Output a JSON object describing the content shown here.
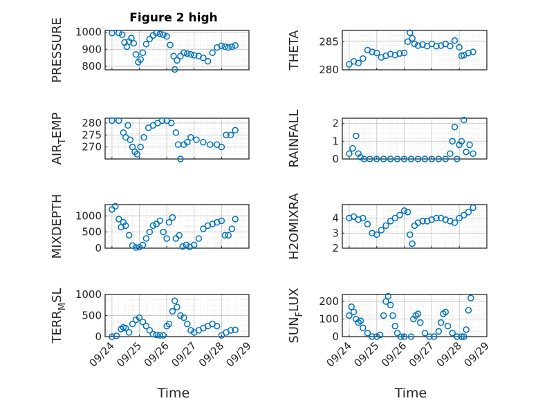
{
  "title": "Figure 2 high",
  "xlabel": "Time",
  "x_tick_labels": [
    "09/24",
    "09/25",
    "09/26",
    "09/27",
    "09/28",
    "09/29"
  ],
  "colors": {
    "marker": "#0072BD",
    "grid": "#d9d9d9",
    "axis": "#262626"
  },
  "chart_data": [
    {
      "type": "scatter",
      "ylabel": "PRESSURE",
      "yticks": [
        "800",
        "900",
        "1000"
      ],
      "ylim": [
        780,
        1010
      ],
      "x": [
        "09/24 00:00",
        "09/24 06:00",
        "09/24 09:00",
        "09/24 11:00",
        "09/24 13:00",
        "09/24 15:00",
        "09/24 17:00",
        "09/24 19:00",
        "09/24 21:00",
        "09/24 23:00",
        "09/25 01:00",
        "09/25 03:00",
        "09/25 06:00",
        "09/25 09:00",
        "09/25 12:00",
        "09/25 15:00",
        "09/25 18:00",
        "09/25 21:00",
        "09/26 00:00",
        "09/26 03:00",
        "09/26 06:00",
        "09/26 07:00",
        "09/26 09:00",
        "09/26 12:00",
        "09/26 15:00",
        "09/26 18:00",
        "09/26 21:00",
        "09/27 00:00",
        "09/27 04:00",
        "09/27 08:00",
        "09/27 12:00",
        "09/27 16:00",
        "09/27 20:00",
        "09/28 00:00",
        "09/28 03:00",
        "09/28 06:00",
        "09/28 09:00",
        "09/28 12:00"
      ],
      "y": [
        995,
        995,
        985,
        940,
        915,
        945,
        965,
        935,
        870,
        825,
        840,
        880,
        930,
        960,
        980,
        995,
        990,
        985,
        975,
        925,
        860,
        782,
        835,
        860,
        880,
        875,
        870,
        865,
        860,
        850,
        830,
        880,
        910,
        920,
        915,
        910,
        915,
        922
      ]
    },
    {
      "type": "scatter",
      "ylabel": "THETA",
      "yticks": [
        "280",
        "285"
      ],
      "ylim": [
        280,
        287
      ],
      "x": [
        "09/24 00:00",
        "09/24 04:00",
        "09/24 08:00",
        "09/24 12:00",
        "09/24 16:00",
        "09/24 20:00",
        "09/25 00:00",
        "09/25 04:00",
        "09/25 08:00",
        "09/25 12:00",
        "09/25 16:00",
        "09/25 20:00",
        "09/26 00:00",
        "09/26 03:00",
        "09/26 05:00",
        "09/26 07:00",
        "09/26 09:00",
        "09/26 12:00",
        "09/26 16:00",
        "09/26 20:00",
        "09/27 00:00",
        "09/27 04:00",
        "09/27 08:00",
        "09/27 12:00",
        "09/27 16:00",
        "09/27 20:00",
        "09/28 00:00",
        "09/28 02:00",
        "09/28 04:00",
        "09/28 08:00",
        "09/28 12:00"
      ],
      "y": [
        281.0,
        281.5,
        281.2,
        282.0,
        283.5,
        283.2,
        283.0,
        282.2,
        282.5,
        282.8,
        282.6,
        282.9,
        283.0,
        285.0,
        286.6,
        285.6,
        284.6,
        284.3,
        284.5,
        284.2,
        284.6,
        284.2,
        284.3,
        284.6,
        284.2,
        285.2,
        284.0,
        282.5,
        282.6,
        283.0,
        283.2
      ]
    },
    {
      "type": "scatter",
      "ylabel": "AIR_TEMP",
      "yticks": [
        "270",
        "275",
        "280"
      ],
      "ylim": [
        265,
        282
      ],
      "x": [
        "09/24 00:00",
        "09/24 06:00",
        "09/24 10:00",
        "09/24 12:00",
        "09/24 14:00",
        "09/24 16:00",
        "09/24 18:00",
        "09/24 20:00",
        "09/24 22:00",
        "09/25 01:00",
        "09/25 04:00",
        "09/25 08:00",
        "09/25 12:00",
        "09/25 16:00",
        "09/25 20:00",
        "09/26 00:00",
        "09/26 04:00",
        "09/26 08:00",
        "09/26 10:00",
        "09/26 12:00",
        "09/26 15:00",
        "09/26 18:00",
        "09/26 21:00",
        "09/27 02:00",
        "09/27 08:00",
        "09/27 14:00",
        "09/27 20:00",
        "09/28 00:00",
        "09/28 04:00",
        "09/28 08:00",
        "09/28 12:00"
      ],
      "y": [
        281,
        281,
        276,
        274,
        279,
        273,
        270,
        268,
        267,
        270,
        274,
        278,
        279,
        280,
        281,
        281,
        280,
        276,
        271,
        265,
        271,
        272,
        274,
        273,
        272,
        271,
        271,
        270,
        275,
        275,
        277
      ]
    },
    {
      "type": "scatter",
      "ylabel": "RAINFALL",
      "yticks": [
        "0",
        "1",
        "2"
      ],
      "ylim": [
        0,
        2.3
      ],
      "x": [
        "09/24 00:00",
        "09/24 03:00",
        "09/24 06:00",
        "09/24 08:00",
        "09/24 10:00",
        "09/24 13:00",
        "09/24 18:00",
        "09/25 00:00",
        "09/25 06:00",
        "09/25 12:00",
        "09/25 18:00",
        "09/26 00:00",
        "09/26 06:00",
        "09/26 12:00",
        "09/26 18:00",
        "09/27 00:00",
        "09/27 06:00",
        "09/27 12:00",
        "09/27 16:00",
        "09/27 18:00",
        "09/27 20:00",
        "09/27 22:00",
        "09/28 00:00",
        "09/28 02:00",
        "09/28 04:00",
        "09/28 06:00",
        "09/28 09:00",
        "09/28 12:00"
      ],
      "y": [
        0.3,
        0.6,
        1.3,
        0.3,
        0.1,
        0,
        0,
        0,
        0,
        0,
        0,
        0,
        0,
        0,
        0,
        0,
        0,
        0,
        0.3,
        1.0,
        1.8,
        0.0,
        0.8,
        1.0,
        2.2,
        0.4,
        0.8,
        0.3
      ]
    },
    {
      "type": "scatter",
      "ylabel": "MIXDEPTH",
      "yticks": [
        "0",
        "500",
        "1000"
      ],
      "ylim": [
        0,
        1350
      ],
      "x": [
        "09/24 00:00",
        "09/24 03:00",
        "09/24 06:00",
        "09/24 08:00",
        "09/24 10:00",
        "09/24 12:00",
        "09/24 15:00",
        "09/24 18:00",
        "09/24 21:00",
        "09/25 00:00",
        "09/25 03:00",
        "09/25 06:00",
        "09/25 09:00",
        "09/25 12:00",
        "09/25 15:00",
        "09/25 18:00",
        "09/25 21:00",
        "09/26 00:00",
        "09/26 02:00",
        "09/26 05:00",
        "09/26 08:00",
        "09/26 11:00",
        "09/26 14:00",
        "09/26 17:00",
        "09/26 20:00",
        "09/27 00:00",
        "09/27 04:00",
        "09/27 08:00",
        "09/27 12:00",
        "09/27 16:00",
        "09/27 20:00",
        "09/28 00:00",
        "09/28 03:00",
        "09/28 06:00",
        "09/28 09:00",
        "09/28 12:00"
      ],
      "y": [
        1200,
        1300,
        900,
        650,
        800,
        700,
        400,
        80,
        20,
        30,
        100,
        300,
        500,
        700,
        750,
        850,
        500,
        300,
        800,
        950,
        300,
        400,
        50,
        100,
        40,
        100,
        300,
        600,
        700,
        750,
        800,
        850,
        400,
        400,
        600,
        900
      ]
    },
    {
      "type": "scatter",
      "ylabel": "H2OMIXRA",
      "yticks": [
        "2",
        "3",
        "4"
      ],
      "ylim": [
        2,
        4.9
      ],
      "x": [
        "09/24 00:00",
        "09/24 04:00",
        "09/24 08:00",
        "09/24 12:00",
        "09/24 16:00",
        "09/24 20:00",
        "09/25 00:00",
        "09/25 04:00",
        "09/25 08:00",
        "09/25 12:00",
        "09/25 16:00",
        "09/25 20:00",
        "09/26 00:00",
        "09/26 03:00",
        "09/26 05:00",
        "09/26 07:00",
        "09/26 09:00",
        "09/26 12:00",
        "09/26 16:00",
        "09/26 20:00",
        "09/27 00:00",
        "09/27 04:00",
        "09/27 08:00",
        "09/27 12:00",
        "09/27 16:00",
        "09/27 20:00",
        "09/28 00:00",
        "09/28 04:00",
        "09/28 08:00",
        "09/28 12:00"
      ],
      "y": [
        4.0,
        4.1,
        3.9,
        4.0,
        3.6,
        3.0,
        2.9,
        3.2,
        3.5,
        3.8,
        4.0,
        4.2,
        4.5,
        4.4,
        2.9,
        2.3,
        3.5,
        3.7,
        3.8,
        3.8,
        3.9,
        4.0,
        4.0,
        3.9,
        3.8,
        3.7,
        4.0,
        4.2,
        4.4,
        4.7
      ]
    },
    {
      "type": "scatter",
      "ylabel": "TERR_MSL",
      "yticks": [
        "0",
        "500",
        "1000"
      ],
      "ylim": [
        0,
        1000
      ],
      "x": [
        "09/24 00:00",
        "09/24 04:00",
        "09/24 08:00",
        "09/24 10:00",
        "09/24 12:00",
        "09/24 15:00",
        "09/24 18:00",
        "09/24 21:00",
        "09/25 00:00",
        "09/25 03:00",
        "09/25 06:00",
        "09/25 09:00",
        "09/25 12:00",
        "09/25 15:00",
        "09/25 18:00",
        "09/25 21:00",
        "09/26 00:00",
        "09/26 02:00",
        "09/26 05:00",
        "09/26 07:00",
        "09/26 09:00",
        "09/26 12:00",
        "09/26 15:00",
        "09/26 18:00",
        "09/26 21:00",
        "09/27 00:00",
        "09/27 04:00",
        "09/27 08:00",
        "09/27 12:00",
        "09/27 16:00",
        "09/27 20:00",
        "09/28 00:00",
        "09/28 04:00",
        "09/28 08:00",
        "09/28 12:00"
      ],
      "y": [
        0,
        20,
        180,
        220,
        200,
        100,
        300,
        400,
        450,
        350,
        250,
        150,
        60,
        40,
        30,
        30,
        250,
        300,
        600,
        850,
        700,
        500,
        450,
        300,
        150,
        100,
        150,
        200,
        250,
        300,
        250,
        30,
        100,
        150,
        160
      ]
    },
    {
      "type": "scatter",
      "ylabel": "SUN_FLUX",
      "yticks": [
        "0",
        "100",
        "200"
      ],
      "ylim": [
        0,
        240
      ],
      "x": [
        "09/24 00:00",
        "09/24 02:00",
        "09/24 04:00",
        "09/24 06:00",
        "09/24 08:00",
        "09/24 10:00",
        "09/24 12:00",
        "09/24 16:00",
        "09/24 20:00",
        "09/25 00:00",
        "09/25 03:00",
        "09/25 06:00",
        "09/25 08:00",
        "09/25 10:00",
        "09/25 12:00",
        "09/25 14:00",
        "09/25 16:00",
        "09/25 18:00",
        "09/25 21:00",
        "09/26 00:00",
        "09/26 06:00",
        "09/26 08:00",
        "09/26 10:00",
        "09/26 12:00",
        "09/26 14:00",
        "09/26 18:00",
        "09/26 22:00",
        "09/27 02:00",
        "09/27 06:00",
        "09/27 08:00",
        "09/27 10:00",
        "09/27 12:00",
        "09/27 14:00",
        "09/27 18:00",
        "09/27 22:00",
        "09/28 02:00",
        "09/28 04:00",
        "09/28 06:00",
        "09/28 08:00",
        "09/28 10:00"
      ],
      "y": [
        120,
        170,
        140,
        100,
        80,
        90,
        50,
        20,
        0,
        0,
        10,
        120,
        200,
        230,
        180,
        120,
        60,
        20,
        0,
        0,
        0,
        100,
        120,
        130,
        80,
        20,
        0,
        0,
        30,
        80,
        130,
        140,
        60,
        20,
        0,
        0,
        0,
        40,
        150,
        220
      ]
    }
  ]
}
